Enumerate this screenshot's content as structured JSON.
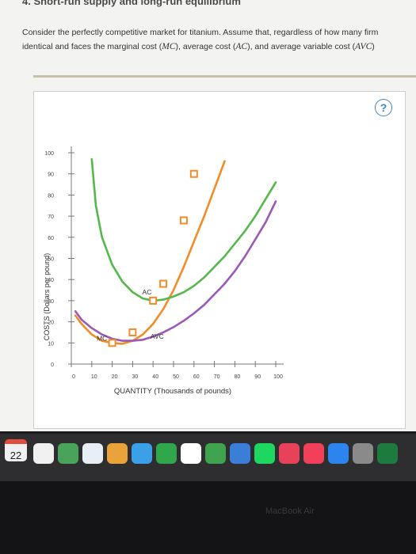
{
  "page": {
    "heading": "4. Short-run supply and long-run equilibrium",
    "intro_line1": "Consider the perfectly competitive market for titanium. Assume that, regardless of how many firm",
    "intro_line2_a": "identical and faces the marginal cost (",
    "intro_line2_mc": "MC",
    "intro_line2_b": "), average cost (",
    "intro_line2_ac": "AC",
    "intro_line2_c": "), and average variable cost (",
    "intro_line2_avc": "AVC",
    "intro_line2_d": ")",
    "help_label": "?"
  },
  "chart_data": {
    "type": "line",
    "xlabel": "QUANTITY (Thousands of pounds)",
    "ylabel": "COSTS (Dollars per pound)",
    "xlim": [
      0,
      100
    ],
    "ylim": [
      0,
      100
    ],
    "x_ticks": [
      0,
      10,
      20,
      30,
      40,
      50,
      60,
      70,
      80,
      90,
      100
    ],
    "y_ticks": [
      0,
      10,
      20,
      30,
      40,
      50,
      60,
      70,
      80,
      90,
      100
    ],
    "grid": false,
    "series": [
      {
        "name": "MC",
        "color": "#f28c28",
        "marker": "square",
        "points": [
          [
            2,
            23
          ],
          [
            5,
            19
          ],
          [
            10,
            14
          ],
          [
            15,
            11
          ],
          [
            20,
            10
          ],
          [
            25,
            9.6
          ],
          [
            30,
            11
          ],
          [
            35,
            14
          ],
          [
            40,
            19
          ],
          [
            45,
            26
          ],
          [
            50,
            35
          ],
          [
            55,
            46
          ],
          [
            60,
            58
          ],
          [
            65,
            70
          ],
          [
            70,
            83
          ],
          [
            75,
            96
          ]
        ],
        "markers": [
          [
            20,
            10
          ],
          [
            30,
            15
          ],
          [
            40,
            30
          ],
          [
            45,
            38
          ],
          [
            55,
            68
          ],
          [
            60,
            90
          ]
        ]
      },
      {
        "name": "AVC",
        "color": "#9b59b6",
        "points": [
          [
            2,
            25
          ],
          [
            5,
            21
          ],
          [
            10,
            17
          ],
          [
            15,
            14
          ],
          [
            20,
            12
          ],
          [
            25,
            11
          ],
          [
            30,
            11
          ],
          [
            35,
            11.5
          ],
          [
            40,
            13
          ],
          [
            45,
            15
          ],
          [
            50,
            17.5
          ],
          [
            55,
            20.5
          ],
          [
            60,
            24
          ],
          [
            65,
            28
          ],
          [
            70,
            33
          ],
          [
            75,
            38
          ],
          [
            80,
            44
          ],
          [
            85,
            51
          ],
          [
            90,
            59
          ],
          [
            95,
            67
          ],
          [
            100,
            77
          ]
        ]
      },
      {
        "name": "AC",
        "color": "#55b84a",
        "points": [
          [
            10,
            97
          ],
          [
            12,
            75
          ],
          [
            15,
            60
          ],
          [
            20,
            47
          ],
          [
            25,
            39
          ],
          [
            30,
            34
          ],
          [
            35,
            31
          ],
          [
            40,
            30
          ],
          [
            45,
            30.5
          ],
          [
            50,
            32
          ],
          [
            55,
            34
          ],
          [
            60,
            37
          ],
          [
            65,
            41
          ],
          [
            70,
            46
          ],
          [
            75,
            51
          ],
          [
            80,
            57
          ],
          [
            85,
            63
          ],
          [
            90,
            70
          ],
          [
            95,
            78
          ],
          [
            100,
            86
          ]
        ]
      }
    ],
    "annotations": [
      {
        "text": "MC",
        "x": 15,
        "y": 11
      },
      {
        "text": "AC",
        "x": 37,
        "y": 33
      },
      {
        "text": "AVC",
        "x": 42,
        "y": 12
      }
    ]
  },
  "dock": {
    "date": "22",
    "icons": [
      "calendar-icon",
      "notes-icon",
      "reminders-icon",
      "maps-icon",
      "photos-icon",
      "messages-icon",
      "facetime-icon",
      "keynote-icon",
      "numbers-icon",
      "keynote-presentation-icon",
      "spotify-icon",
      "news-icon",
      "music-icon",
      "app-store-icon",
      "system-preferences-icon",
      "excel-icon"
    ]
  },
  "bezel": {
    "label": "MacBook Air"
  }
}
